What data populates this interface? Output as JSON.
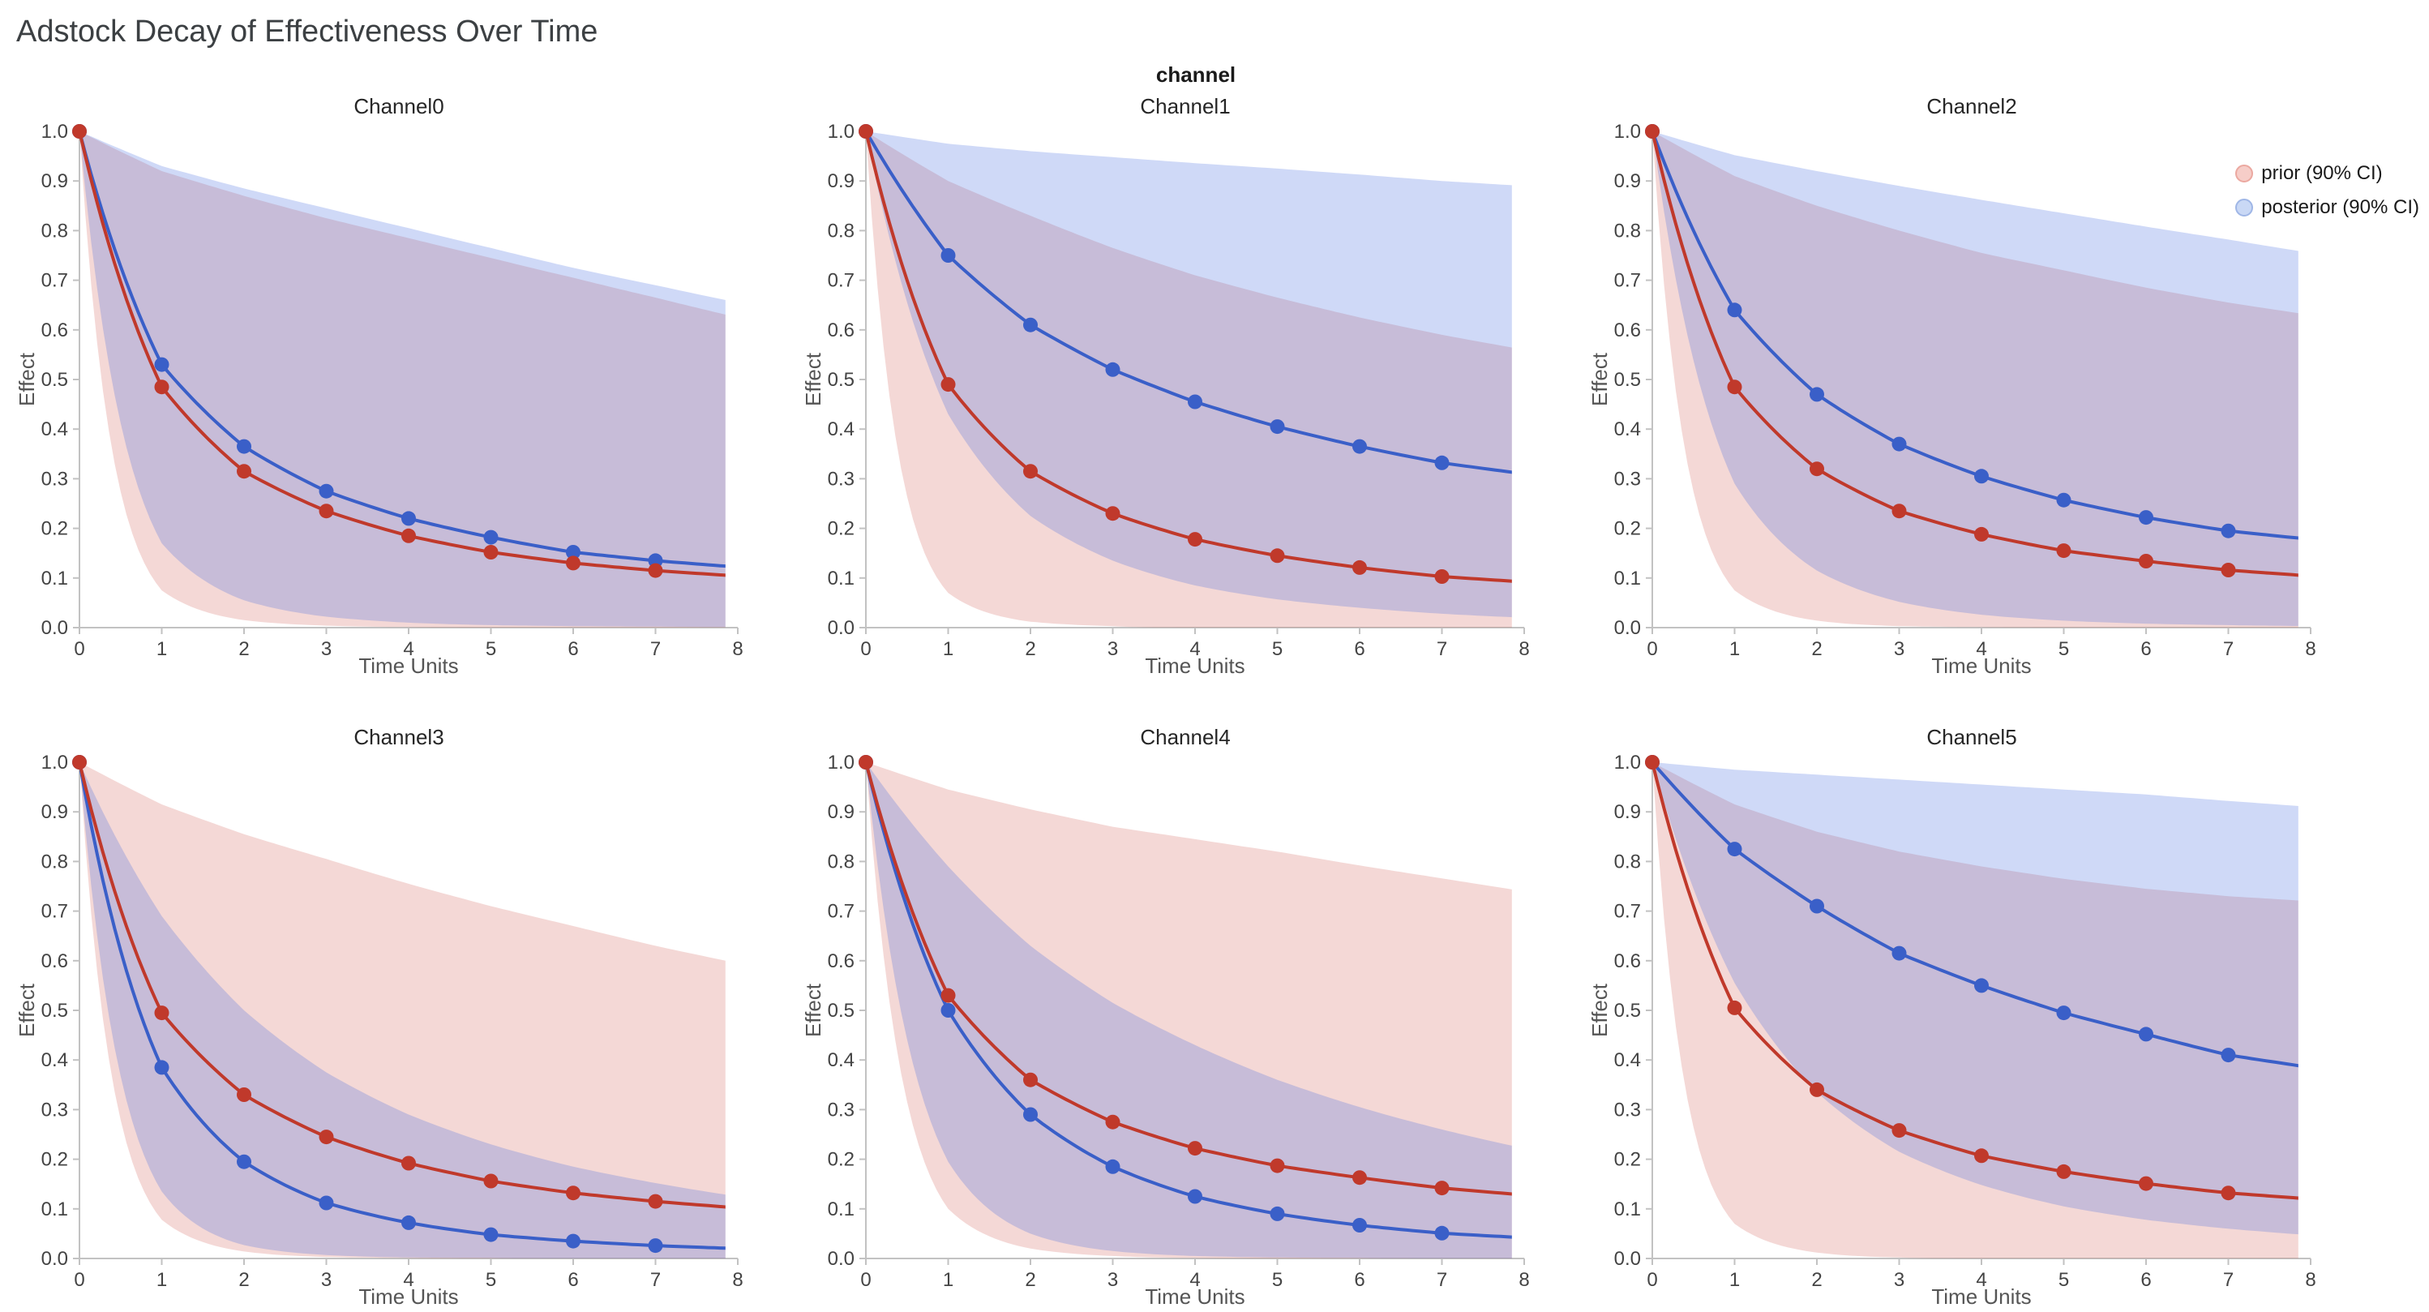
{
  "page_title": "Adstock Decay of Effectiveness Over Time",
  "facet_label": "channel",
  "legend": [
    {
      "label": "prior (90% CI)",
      "color": "#f6cdc8",
      "border": "#eBa8a0"
    },
    {
      "label": "posterior (90% CI)",
      "color": "#c9d8f5",
      "border": "#9fb6e6"
    }
  ],
  "chart_data": {
    "type": "line",
    "title": "Adstock Decay of Effectiveness Over Time",
    "xlabel": "Time Units",
    "ylabel": "Effect",
    "xlim": [
      0,
      8
    ],
    "ylim": [
      0,
      1
    ],
    "x_ticks": [
      0,
      1,
      2,
      3,
      4,
      5,
      6,
      7,
      8
    ],
    "y_ticks": [
      0,
      0.1,
      0.2,
      0.3,
      0.4,
      0.5,
      0.6,
      0.7,
      0.8,
      0.9,
      1.0
    ],
    "x": [
      0,
      1,
      2,
      3,
      4,
      5,
      6,
      7,
      8
    ],
    "marker_x": [
      0,
      1,
      2,
      3,
      4,
      5,
      6,
      7
    ],
    "band_clip_x": 7.85,
    "grid": false,
    "legend_position": "top-right",
    "colors": {
      "prior": "#c0392b",
      "posterior": "#3a5fc8",
      "prior_band": "rgba(202,60,48,0.20)",
      "posterior_band": "rgba(65,105,225,0.25)",
      "spine": "#c2c2c2",
      "tick_label": "#444444",
      "axis_label": "#555555"
    },
    "series_names": [
      "prior (90% CI)",
      "posterior (90% CI)"
    ],
    "facets": [
      {
        "title": "Channel0",
        "prior": {
          "mean": [
            1.0,
            0.485,
            0.315,
            0.235,
            0.185,
            0.152,
            0.13,
            0.115,
            0.104
          ],
          "upper": [
            1.0,
            0.92,
            0.87,
            0.825,
            0.785,
            0.745,
            0.705,
            0.665,
            0.625
          ],
          "lower": [
            1.0,
            0.075,
            0.015,
            0.004,
            0.001,
            0.0,
            0.0,
            0.0,
            0.0
          ]
        },
        "posterior": {
          "mean": [
            1.0,
            0.53,
            0.365,
            0.275,
            0.22,
            0.182,
            0.152,
            0.135,
            0.122
          ],
          "upper": [
            1.0,
            0.93,
            0.885,
            0.845,
            0.805,
            0.765,
            0.725,
            0.69,
            0.655
          ],
          "lower": [
            1.0,
            0.17,
            0.055,
            0.022,
            0.01,
            0.005,
            0.003,
            0.002,
            0.001
          ]
        }
      },
      {
        "title": "Channel1",
        "prior": {
          "mean": [
            1.0,
            0.49,
            0.315,
            0.23,
            0.178,
            0.145,
            0.121,
            0.103,
            0.092
          ],
          "upper": [
            1.0,
            0.9,
            0.83,
            0.765,
            0.71,
            0.665,
            0.625,
            0.59,
            0.56
          ],
          "lower": [
            1.0,
            0.07,
            0.012,
            0.003,
            0.0,
            0.0,
            0.0,
            0.0,
            0.0
          ]
        },
        "posterior": {
          "mean": [
            1.0,
            0.75,
            0.61,
            0.52,
            0.455,
            0.405,
            0.365,
            0.332,
            0.31
          ],
          "upper": [
            1.0,
            0.975,
            0.96,
            0.948,
            0.936,
            0.925,
            0.913,
            0.9,
            0.89
          ],
          "lower": [
            1.0,
            0.43,
            0.225,
            0.135,
            0.085,
            0.057,
            0.04,
            0.028,
            0.02
          ]
        }
      },
      {
        "title": "Channel2",
        "prior": {
          "mean": [
            1.0,
            0.485,
            0.32,
            0.235,
            0.188,
            0.155,
            0.134,
            0.116,
            0.104
          ],
          "upper": [
            1.0,
            0.91,
            0.85,
            0.8,
            0.755,
            0.72,
            0.685,
            0.655,
            0.63
          ],
          "lower": [
            1.0,
            0.075,
            0.014,
            0.003,
            0.001,
            0.0,
            0.0,
            0.0,
            0.0
          ]
        },
        "posterior": {
          "mean": [
            1.0,
            0.64,
            0.47,
            0.37,
            0.305,
            0.257,
            0.222,
            0.195,
            0.178
          ],
          "upper": [
            1.0,
            0.952,
            0.92,
            0.89,
            0.862,
            0.835,
            0.808,
            0.782,
            0.755
          ],
          "lower": [
            1.0,
            0.29,
            0.115,
            0.052,
            0.026,
            0.014,
            0.008,
            0.005,
            0.003
          ]
        }
      },
      {
        "title": "Channel3",
        "prior": {
          "mean": [
            1.0,
            0.495,
            0.33,
            0.245,
            0.192,
            0.156,
            0.132,
            0.115,
            0.102
          ],
          "upper": [
            1.0,
            0.915,
            0.855,
            0.805,
            0.755,
            0.71,
            0.67,
            0.63,
            0.595
          ],
          "lower": [
            1.0,
            0.078,
            0.014,
            0.003,
            0.001,
            0.0,
            0.0,
            0.0,
            0.0
          ]
        },
        "posterior": {
          "mean": [
            1.0,
            0.385,
            0.195,
            0.112,
            0.072,
            0.048,
            0.035,
            0.026,
            0.02
          ],
          "upper": [
            1.0,
            0.69,
            0.5,
            0.375,
            0.29,
            0.23,
            0.185,
            0.152,
            0.125
          ],
          "lower": [
            1.0,
            0.135,
            0.027,
            0.007,
            0.002,
            0.001,
            0.0,
            0.0,
            0.0
          ]
        }
      },
      {
        "title": "Channel4",
        "prior": {
          "mean": [
            1.0,
            0.53,
            0.36,
            0.275,
            0.222,
            0.187,
            0.163,
            0.142,
            0.128
          ],
          "upper": [
            1.0,
            0.945,
            0.905,
            0.87,
            0.845,
            0.82,
            0.792,
            0.766,
            0.74
          ],
          "lower": [
            1.0,
            0.1,
            0.02,
            0.005,
            0.001,
            0.0,
            0.0,
            0.0,
            0.0
          ]
        },
        "posterior": {
          "mean": [
            1.0,
            0.5,
            0.29,
            0.185,
            0.125,
            0.09,
            0.067,
            0.051,
            0.042
          ],
          "upper": [
            1.0,
            0.79,
            0.63,
            0.515,
            0.43,
            0.36,
            0.305,
            0.26,
            0.222
          ],
          "lower": [
            1.0,
            0.195,
            0.05,
            0.015,
            0.005,
            0.002,
            0.001,
            0.0,
            0.0
          ]
        }
      },
      {
        "title": "Channel5",
        "prior": {
          "mean": [
            1.0,
            0.505,
            0.34,
            0.258,
            0.207,
            0.175,
            0.151,
            0.132,
            0.12
          ],
          "upper": [
            1.0,
            0.915,
            0.86,
            0.82,
            0.79,
            0.765,
            0.745,
            0.73,
            0.72
          ],
          "lower": [
            1.0,
            0.07,
            0.012,
            0.002,
            0.0,
            0.0,
            0.0,
            0.0,
            0.0
          ]
        },
        "posterior": {
          "mean": [
            1.0,
            0.825,
            0.71,
            0.615,
            0.55,
            0.495,
            0.452,
            0.41,
            0.385
          ],
          "upper": [
            1.0,
            0.985,
            0.975,
            0.965,
            0.955,
            0.945,
            0.935,
            0.922,
            0.91
          ],
          "lower": [
            1.0,
            0.555,
            0.335,
            0.215,
            0.148,
            0.105,
            0.078,
            0.06,
            0.047
          ]
        }
      }
    ]
  }
}
